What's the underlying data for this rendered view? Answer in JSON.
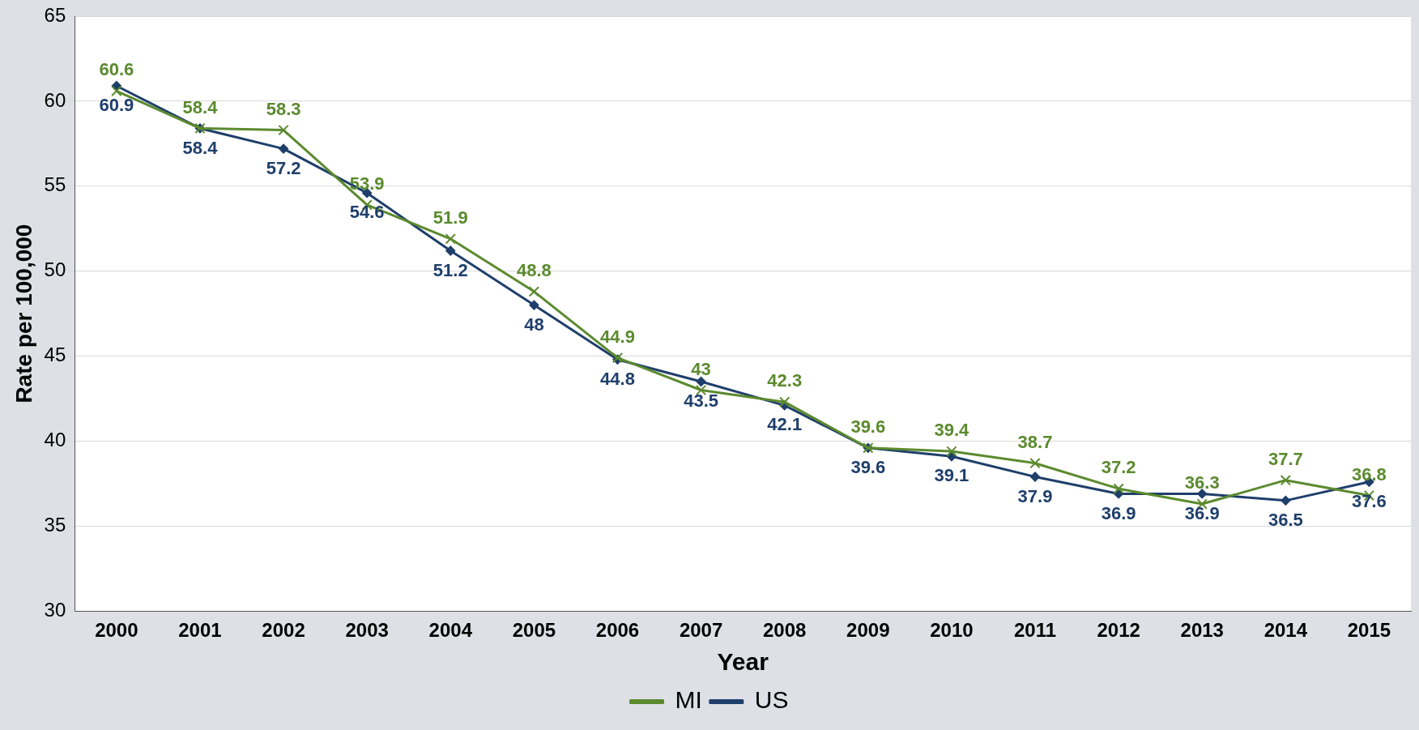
{
  "chart_data": {
    "type": "line",
    "xlabel": "Year",
    "ylabel": "Rate per 100,000",
    "categories": [
      "2000",
      "2001",
      "2002",
      "2003",
      "2004",
      "2005",
      "2006",
      "2007",
      "2008",
      "2009",
      "2010",
      "2011",
      "2012",
      "2013",
      "2014",
      "2015"
    ],
    "series": [
      {
        "name": "MI",
        "color": "#5b8a2e",
        "marker": "cross",
        "values": [
          60.6,
          58.4,
          58.3,
          53.9,
          51.9,
          48.8,
          44.9,
          43,
          42.3,
          39.6,
          39.4,
          38.7,
          37.2,
          36.3,
          37.7,
          36.8
        ]
      },
      {
        "name": "US",
        "color": "#1f3f6b",
        "marker": "diamond",
        "values": [
          60.9,
          58.4,
          57.2,
          54.6,
          51.2,
          48,
          44.8,
          43.5,
          42.1,
          39.6,
          39.1,
          37.9,
          36.9,
          36.9,
          36.5,
          37.6
        ]
      }
    ],
    "ylim": [
      30,
      65
    ],
    "yticks": [
      30,
      35,
      40,
      45,
      50,
      55,
      60,
      65
    ],
    "grid": "y",
    "legend": "bottom",
    "data_labels": true,
    "line_style": "solid"
  }
}
